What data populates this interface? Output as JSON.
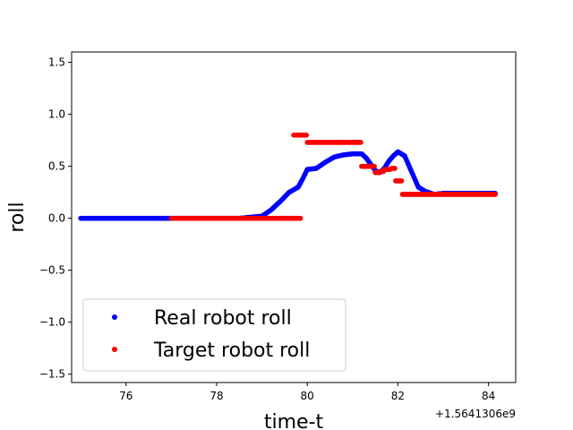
{
  "chart_data": {
    "type": "scatter",
    "title": "",
    "xlabel": "time-t",
    "ylabel": "roll",
    "x_offset_label": "+1.5641306e9",
    "xlim": [
      74.8,
      84.6
    ],
    "ylim": [
      -1.58,
      1.6
    ],
    "xticks": [
      76,
      78,
      80,
      82,
      84
    ],
    "yticks": [
      -1.5,
      -1.0,
      -0.5,
      0.0,
      0.5,
      1.0,
      1.5
    ],
    "xtick_labels": [
      "76",
      "78",
      "80",
      "82",
      "84"
    ],
    "ytick_labels": [
      "−1.5",
      "−1.0",
      "−0.5",
      "0.0",
      "0.5",
      "1.0",
      "1.5"
    ],
    "grid": false,
    "legend_position": "lower-left",
    "series": [
      {
        "name": "Real robot roll",
        "color": "#0000ff",
        "points": [
          [
            75.0,
            0.0
          ],
          [
            75.5,
            0.0
          ],
          [
            76.0,
            0.0
          ],
          [
            76.5,
            0.0
          ],
          [
            77.0,
            0.0
          ],
          [
            77.5,
            0.0
          ],
          [
            78.0,
            0.0
          ],
          [
            78.5,
            0.0
          ],
          [
            78.75,
            0.01
          ],
          [
            79.0,
            0.02
          ],
          [
            79.2,
            0.08
          ],
          [
            79.4,
            0.16
          ],
          [
            79.6,
            0.25
          ],
          [
            79.8,
            0.3
          ],
          [
            79.9,
            0.38
          ],
          [
            80.0,
            0.47
          ],
          [
            80.2,
            0.48
          ],
          [
            80.4,
            0.54
          ],
          [
            80.6,
            0.59
          ],
          [
            80.8,
            0.61
          ],
          [
            81.0,
            0.62
          ],
          [
            81.2,
            0.62
          ],
          [
            81.3,
            0.58
          ],
          [
            81.4,
            0.52
          ],
          [
            81.5,
            0.46
          ],
          [
            81.6,
            0.44
          ],
          [
            81.7,
            0.48
          ],
          [
            81.8,
            0.55
          ],
          [
            81.9,
            0.6
          ],
          [
            82.0,
            0.64
          ],
          [
            82.15,
            0.6
          ],
          [
            82.3,
            0.45
          ],
          [
            82.45,
            0.3
          ],
          [
            82.6,
            0.26
          ],
          [
            82.8,
            0.23
          ],
          [
            83.0,
            0.24
          ],
          [
            83.5,
            0.24
          ],
          [
            84.0,
            0.24
          ],
          [
            84.15,
            0.24
          ]
        ]
      },
      {
        "name": "Target robot roll",
        "color": "#ff0000",
        "points": [
          [
            77.0,
            0.0
          ],
          [
            77.5,
            0.0
          ],
          [
            78.0,
            0.0
          ],
          [
            78.5,
            0.0
          ],
          [
            79.0,
            0.0
          ],
          [
            79.5,
            0.0
          ],
          [
            79.6,
            0.0
          ],
          [
            79.85,
            0.0
          ],
          [
            79.7,
            0.8
          ],
          [
            79.8,
            0.8
          ],
          [
            80.0,
            0.73
          ],
          [
            80.5,
            0.73
          ],
          [
            81.0,
            0.73
          ],
          [
            81.2,
            0.5
          ],
          [
            81.4,
            0.5
          ],
          [
            81.5,
            0.44
          ],
          [
            81.6,
            0.45
          ],
          [
            81.7,
            0.47
          ],
          [
            81.85,
            0.48
          ],
          [
            81.95,
            0.36
          ],
          [
            82.1,
            0.23
          ],
          [
            82.5,
            0.23
          ],
          [
            83.0,
            0.23
          ],
          [
            83.5,
            0.23
          ],
          [
            84.0,
            0.23
          ],
          [
            84.15,
            0.23
          ]
        ]
      }
    ]
  }
}
